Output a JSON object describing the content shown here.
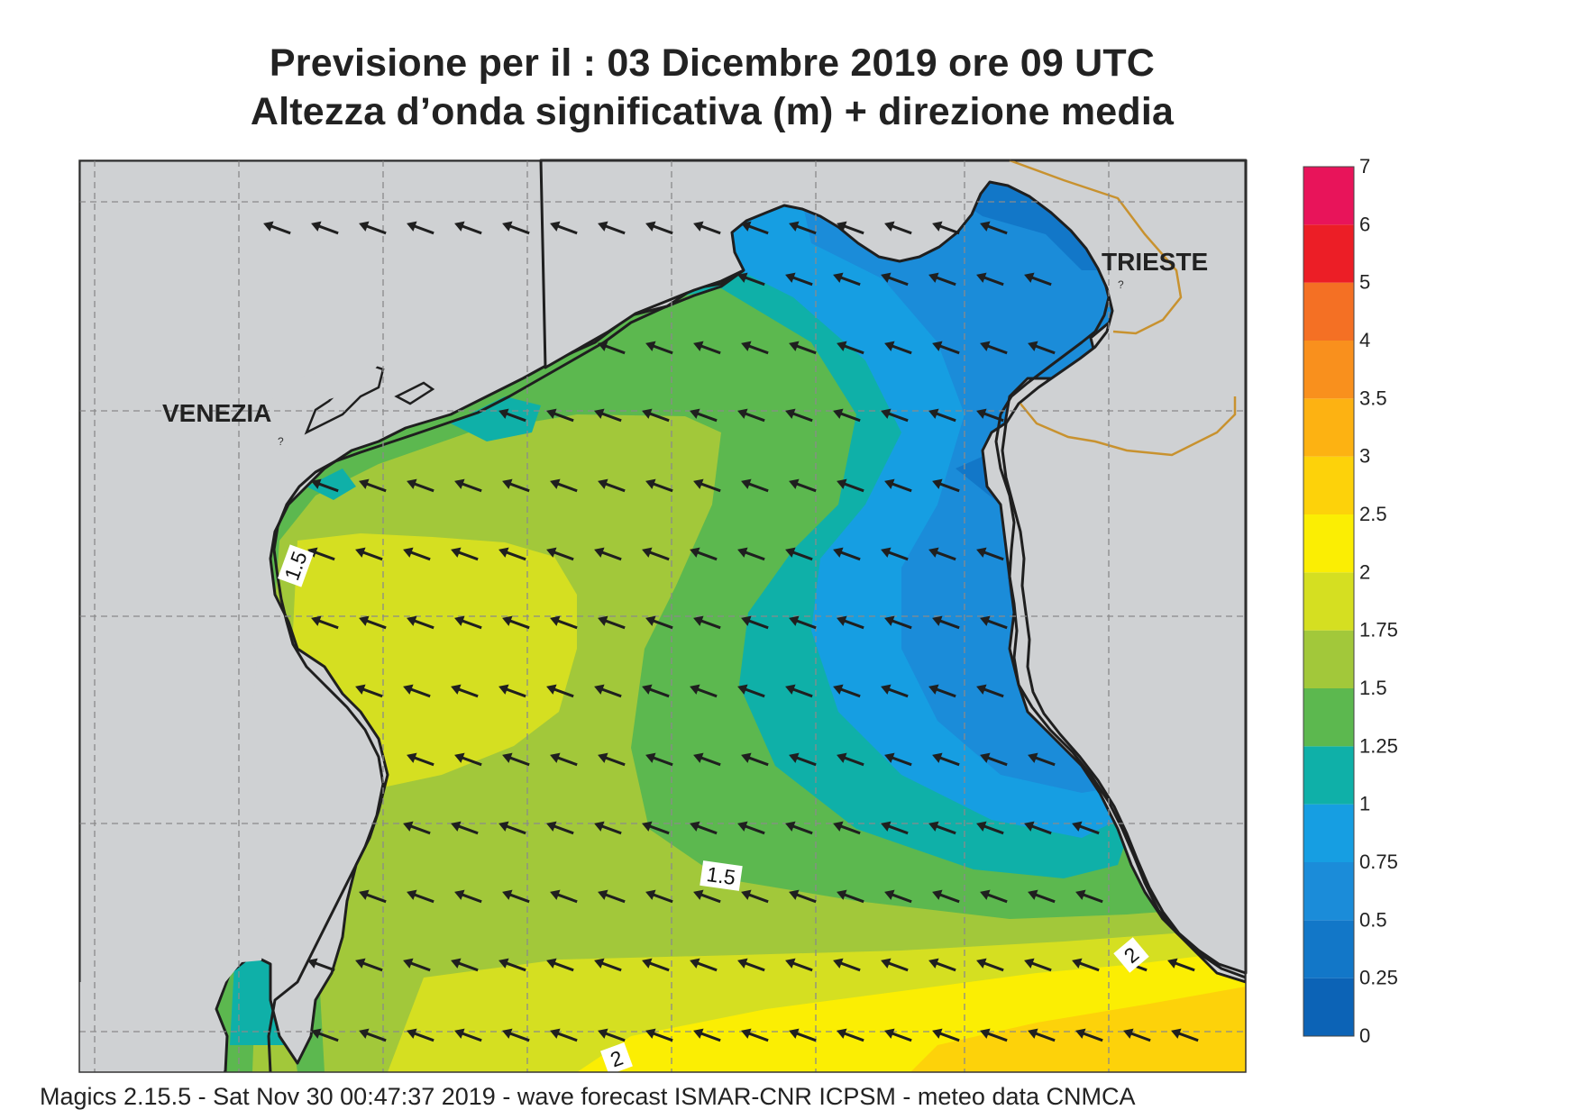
{
  "title_line1": "Previsione per il  :  03 Dicembre  2019   ore 09 UTC",
  "title_line2": "Altezza d’onda significativa (m) + direzione media",
  "footer": "Magics 2.15.5 - Sat Nov 30 00:47:37 2019 - wave forecast  ISMAR-CNR  ICPSM - meteo data   CNMCA",
  "cities": {
    "venezia": "VENEZIA",
    "trieste": "TRIESTE"
  },
  "contour_labels": [
    "1.5",
    "1.5",
    "2",
    "2"
  ],
  "colorbar": {
    "ticks": [
      "0",
      "0.25",
      "0.5",
      "0.75",
      "1",
      "1.25",
      "1.5",
      "1.75",
      "2",
      "2.5",
      "3",
      "3.5",
      "4",
      "5",
      "6",
      "7"
    ],
    "colors": [
      "#0c63b6",
      "#1277c8",
      "#1b8cd9",
      "#169ee2",
      "#0fb0a8",
      "#5cb84f",
      "#a2c83a",
      "#d5df21",
      "#fbee03",
      "#fdd20a",
      "#fdb212",
      "#f9901d",
      "#f47024",
      "#ec1e26",
      "#e8145a"
    ]
  },
  "colors": {
    "land": "#cfd1d3",
    "coast": "#1f1f1f",
    "border": "#c8922f",
    "arrow": "#1f1f1f"
  }
}
